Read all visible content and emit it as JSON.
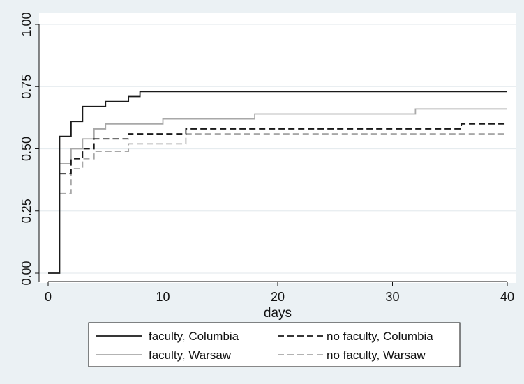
{
  "chart_data": {
    "type": "line",
    "step": true,
    "xlabel": "days",
    "ylabel": "",
    "xlim": [
      0,
      40
    ],
    "ylim": [
      0,
      1
    ],
    "xticks": [
      0,
      10,
      20,
      30,
      40
    ],
    "yticks": [
      0,
      0.25,
      0.5,
      0.75,
      1
    ],
    "xtick_labels": [
      "0",
      "10",
      "20",
      "30",
      "40"
    ],
    "ytick_labels": [
      "0.00",
      "0.25",
      "0.50",
      "0.75",
      "1.00"
    ],
    "grid": true,
    "legend_position": "bottom",
    "series": [
      {
        "name": "faculty, Columbia",
        "color": "#1a1a1a",
        "dash": "solid",
        "x": [
          0,
          1,
          2,
          3,
          5,
          7,
          8,
          40
        ],
        "y": [
          0.0,
          0.55,
          0.61,
          0.67,
          0.69,
          0.71,
          0.73,
          0.73
        ]
      },
      {
        "name": "no faculty, Columbia",
        "color": "#1a1a1a",
        "dash": "dashed",
        "x": [
          1,
          2,
          3,
          4,
          7,
          12,
          36,
          40
        ],
        "y": [
          0.4,
          0.46,
          0.5,
          0.54,
          0.56,
          0.58,
          0.6,
          0.6
        ]
      },
      {
        "name": "faculty, Warsaw",
        "color": "#a8a8a8",
        "dash": "solid",
        "x": [
          1,
          2,
          3,
          4,
          5,
          10,
          18,
          32,
          40
        ],
        "y": [
          0.44,
          0.5,
          0.54,
          0.58,
          0.6,
          0.62,
          0.64,
          0.66,
          0.66
        ]
      },
      {
        "name": "no faculty, Warsaw",
        "color": "#a8a8a8",
        "dash": "dashed",
        "x": [
          1,
          2,
          3,
          4,
          7,
          12,
          40
        ],
        "y": [
          0.32,
          0.42,
          0.46,
          0.49,
          0.52,
          0.56,
          0.56
        ]
      }
    ]
  }
}
